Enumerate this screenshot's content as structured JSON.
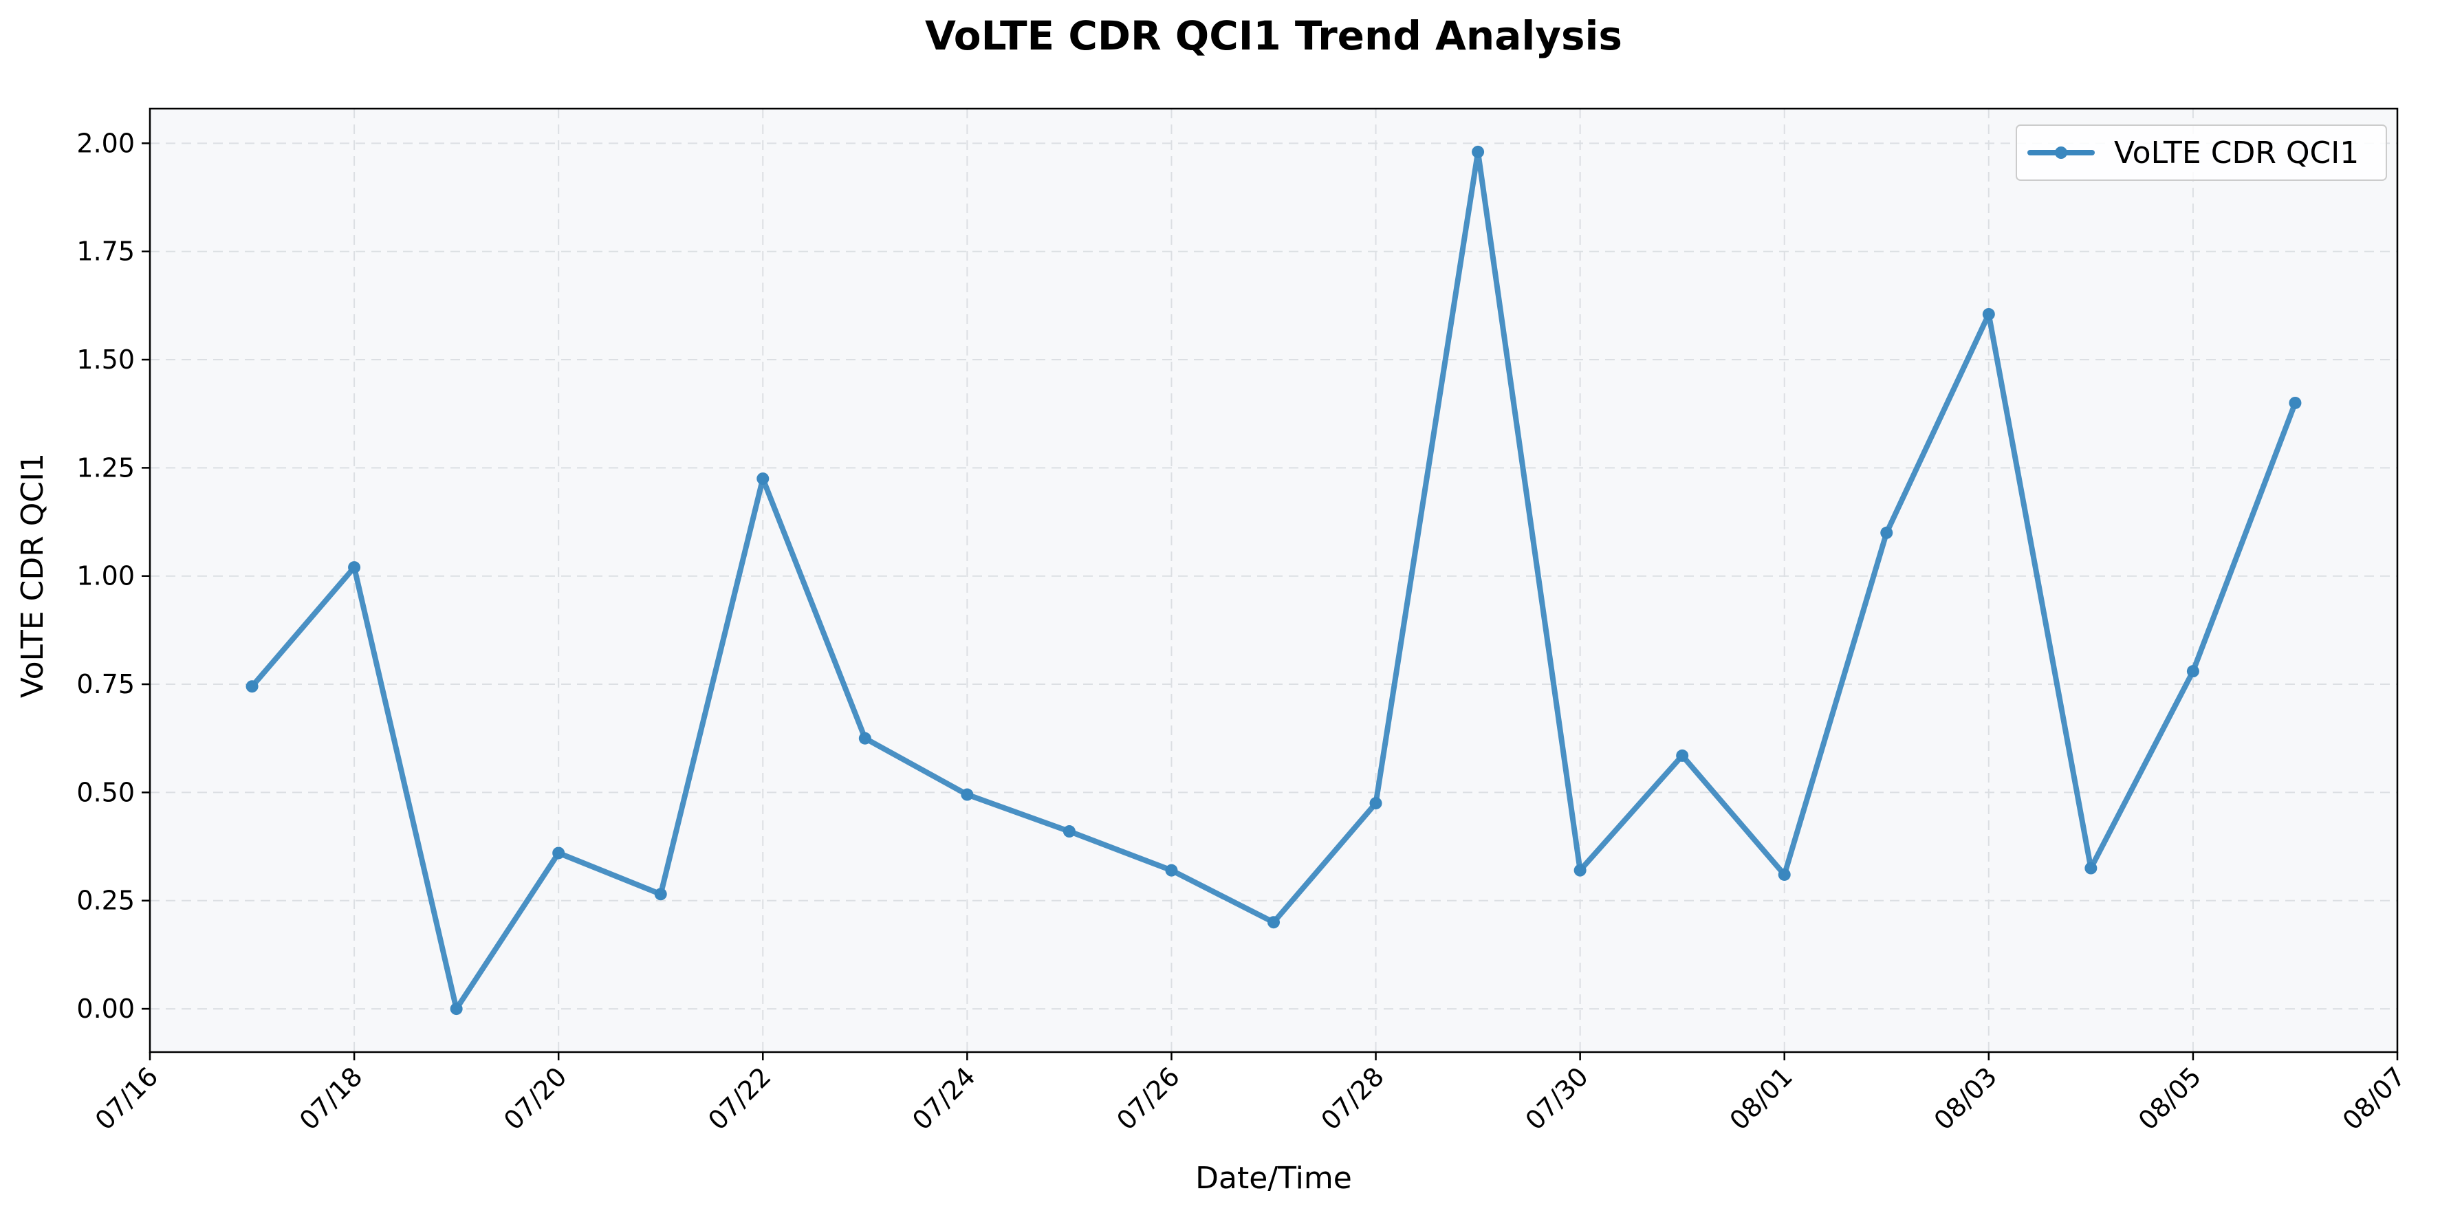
{
  "chart_data": {
    "type": "line",
    "title": "VoLTE CDR QCI1 Trend Analysis",
    "xlabel": "Date/Time",
    "ylabel": "VoLTE CDR QCI1",
    "x_ticks": [
      "07/16",
      "07/18",
      "07/20",
      "07/22",
      "07/24",
      "07/26",
      "07/28",
      "07/30",
      "08/01",
      "08/03",
      "08/05",
      "08/07"
    ],
    "y_ticks": [
      "0.00",
      "0.25",
      "0.50",
      "0.75",
      "1.00",
      "1.25",
      "1.50",
      "1.75",
      "2.00"
    ],
    "xlim": [
      "07/16",
      "08/07"
    ],
    "ylim": [
      -0.1,
      2.08
    ],
    "grid": true,
    "legend_position": "top-right",
    "series": [
      {
        "name": "VoLTE CDR QCI1",
        "color": "#3a87bf",
        "marker": "circle",
        "x": [
          "07/17",
          "07/18",
          "07/19",
          "07/20",
          "07/21",
          "07/22",
          "07/23",
          "07/24",
          "07/25",
          "07/26",
          "07/27",
          "07/28",
          "07/29",
          "07/30",
          "07/31",
          "08/01",
          "08/02",
          "08/03",
          "08/04",
          "08/05",
          "08/06"
        ],
        "values": [
          0.745,
          1.02,
          0.0,
          0.36,
          0.265,
          1.225,
          0.625,
          0.495,
          0.41,
          0.32,
          0.2,
          0.475,
          1.98,
          0.32,
          0.585,
          0.31,
          1.1,
          1.605,
          0.325,
          0.78,
          1.4
        ]
      }
    ]
  }
}
